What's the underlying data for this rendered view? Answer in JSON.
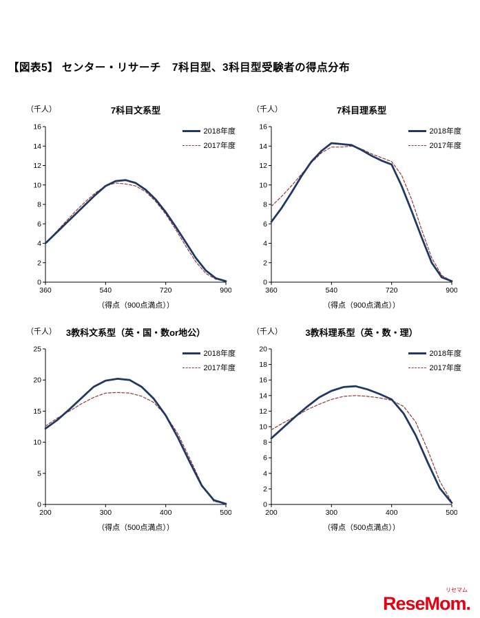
{
  "page": {
    "title": "【図表5】 センター・リサーチ　7科目型、3科目型受験者の得点分布"
  },
  "colors": {
    "line2018": "#1f3864",
    "line2017": "#953735",
    "logo": "#e60012"
  },
  "logo": {
    "text": "ReseMom.",
    "ruby": "リセマム"
  },
  "chart_data": [
    {
      "type": "line",
      "title": "7科目文系型",
      "unit_label": "（千人）",
      "xlabel": "（得点（900点満点））",
      "xlim": [
        360,
        900
      ],
      "xticks": [
        360,
        540,
        720,
        900
      ],
      "ylim": [
        0,
        16
      ],
      "yticks": [
        0,
        2,
        4,
        6,
        8,
        10,
        12,
        14,
        16
      ],
      "grid": false,
      "legend_position": "top-right",
      "x": [
        360,
        390,
        420,
        450,
        480,
        510,
        540,
        570,
        600,
        630,
        660,
        690,
        720,
        750,
        780,
        810,
        840,
        870,
        900
      ],
      "series": [
        {
          "name": "2018年度",
          "style": "solid",
          "values": [
            4.0,
            5.0,
            6.0,
            7.0,
            8.0,
            9.0,
            9.9,
            10.4,
            10.5,
            10.2,
            9.5,
            8.5,
            7.2,
            5.7,
            4.1,
            2.5,
            1.2,
            0.4,
            0.1
          ]
        },
        {
          "name": "2017年度",
          "style": "dashed",
          "values": [
            4.0,
            5.1,
            6.2,
            7.3,
            8.3,
            9.2,
            9.9,
            10.2,
            10.1,
            9.9,
            9.3,
            8.3,
            7.0,
            5.4,
            3.7,
            2.1,
            0.9,
            0.3,
            0.1
          ]
        }
      ]
    },
    {
      "type": "line",
      "title": "7科目理系型",
      "unit_label": "（千人）",
      "xlabel": "（得点（900点満点））",
      "xlim": [
        360,
        900
      ],
      "xticks": [
        360,
        540,
        720,
        900
      ],
      "ylim": [
        0,
        16
      ],
      "yticks": [
        0,
        2,
        4,
        6,
        8,
        10,
        12,
        14,
        16
      ],
      "grid": false,
      "legend_position": "top-right",
      "x": [
        360,
        390,
        420,
        450,
        480,
        510,
        540,
        570,
        600,
        630,
        660,
        690,
        720,
        750,
        780,
        810,
        840,
        870,
        900
      ],
      "series": [
        {
          "name": "2018年度",
          "style": "solid",
          "values": [
            6.2,
            7.6,
            9.2,
            10.9,
            12.4,
            13.5,
            14.3,
            14.2,
            14.1,
            13.6,
            13.0,
            12.5,
            12.1,
            9.9,
            7.3,
            4.6,
            2.0,
            0.5,
            0.1
          ]
        },
        {
          "name": "2017年度",
          "style": "dashed",
          "values": [
            7.8,
            8.8,
            9.9,
            11.1,
            12.3,
            13.3,
            13.9,
            13.9,
            14.0,
            13.7,
            13.2,
            12.8,
            12.4,
            11.0,
            8.5,
            5.4,
            2.5,
            0.7,
            0.1
          ]
        }
      ]
    },
    {
      "type": "line",
      "title": "3教科文系型（英・国・数or地公）",
      "unit_label": "（千人）",
      "xlabel": "（得点（500点満点））",
      "xlim": [
        200,
        500
      ],
      "xticks": [
        200,
        300,
        400,
        500
      ],
      "ylim": [
        0,
        25
      ],
      "yticks": [
        0,
        5,
        10,
        15,
        20,
        25
      ],
      "grid": false,
      "legend_position": "top-right",
      "x": [
        200,
        220,
        240,
        260,
        280,
        300,
        320,
        340,
        360,
        380,
        400,
        420,
        440,
        460,
        480,
        500
      ],
      "series": [
        {
          "name": "2018年度",
          "style": "solid",
          "values": [
            12.2,
            13.6,
            15.3,
            17.1,
            18.9,
            19.9,
            20.2,
            20.0,
            18.9,
            17.0,
            14.3,
            10.8,
            6.8,
            3.0,
            0.7,
            0.1
          ]
        },
        {
          "name": "2017年度",
          "style": "dashed",
          "values": [
            12.6,
            13.9,
            15.0,
            16.2,
            17.2,
            17.9,
            18.0,
            17.9,
            17.4,
            16.4,
            14.3,
            11.4,
            7.4,
            3.2,
            0.5,
            0.1
          ]
        }
      ]
    },
    {
      "type": "line",
      "title": "3教科理系型（英・数・理）",
      "unit_label": "（千人）",
      "xlabel": "（得点（500点満点））",
      "xlim": [
        200,
        500
      ],
      "xticks": [
        200,
        300,
        400,
        500
      ],
      "ylim": [
        0,
        20
      ],
      "yticks": [
        0,
        2,
        4,
        6,
        8,
        10,
        12,
        14,
        16,
        18,
        20
      ],
      "grid": false,
      "legend_position": "top-right",
      "x": [
        200,
        220,
        240,
        260,
        280,
        300,
        320,
        340,
        360,
        380,
        400,
        420,
        440,
        460,
        480,
        500
      ],
      "series": [
        {
          "name": "2018年度",
          "style": "solid",
          "values": [
            8.5,
            9.9,
            11.3,
            12.6,
            13.8,
            14.6,
            15.1,
            15.2,
            14.8,
            14.2,
            13.5,
            11.7,
            8.9,
            5.4,
            2.1,
            0.2
          ]
        },
        {
          "name": "2017年度",
          "style": "dashed",
          "values": [
            9.6,
            10.5,
            11.3,
            12.2,
            12.9,
            13.5,
            13.9,
            14.0,
            13.9,
            13.7,
            13.4,
            12.6,
            10.6,
            7.0,
            3.0,
            0.3
          ]
        }
      ]
    }
  ]
}
